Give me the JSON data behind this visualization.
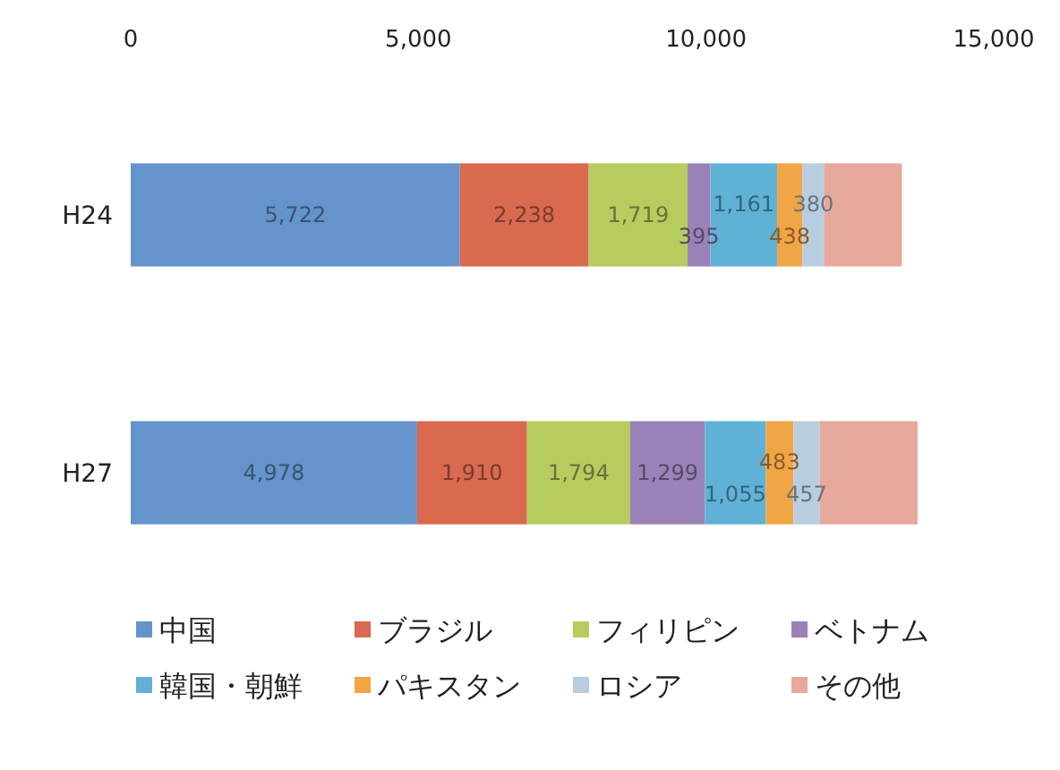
{
  "chart_data": {
    "type": "bar",
    "orientation": "horizontal",
    "stacked": true,
    "categories": [
      "H24",
      "H27"
    ],
    "series": [
      {
        "name": "中国",
        "color": "#6494cb",
        "values": [
          5722,
          4978
        ],
        "value_labels": [
          "5,722",
          "4,978"
        ]
      },
      {
        "name": "ブラジル",
        "color": "#d9694f",
        "values": [
          2238,
          1910
        ],
        "value_labels": [
          "2,238",
          "1,910"
        ]
      },
      {
        "name": "フィリピン",
        "color": "#b6cc5f",
        "values": [
          1719,
          1794
        ],
        "value_labels": [
          "1,719",
          "1,794"
        ]
      },
      {
        "name": "ベトナム",
        "color": "#9a82b8",
        "values": [
          395,
          1299
        ],
        "value_labels": [
          "395",
          "1,299"
        ]
      },
      {
        "name": "韓国・朝鮮",
        "color": "#5fb2d6",
        "values": [
          1161,
          1055
        ],
        "value_labels": [
          "1,161",
          "1,055"
        ]
      },
      {
        "name": "パキスタン",
        "color": "#f2a545",
        "values": [
          438,
          483
        ],
        "value_labels": [
          "438",
          "483"
        ]
      },
      {
        "name": "ロシア",
        "color": "#b9cde0",
        "values": [
          380,
          457
        ],
        "value_labels": [
          "380",
          "457"
        ]
      },
      {
        "name": "その他",
        "color": "#e6a99b",
        "values": [
          1350,
          1700
        ],
        "value_labels": [
          null,
          null
        ]
      }
    ],
    "xlim": [
      0,
      15000
    ],
    "xticks": [
      0,
      {
        "value": 5000,
        "label": "5,000"
      },
      {
        "value": 10000,
        "label": "10,000"
      },
      {
        "value": 15000,
        "label": "15,000"
      }
    ],
    "legend": "bottom"
  }
}
